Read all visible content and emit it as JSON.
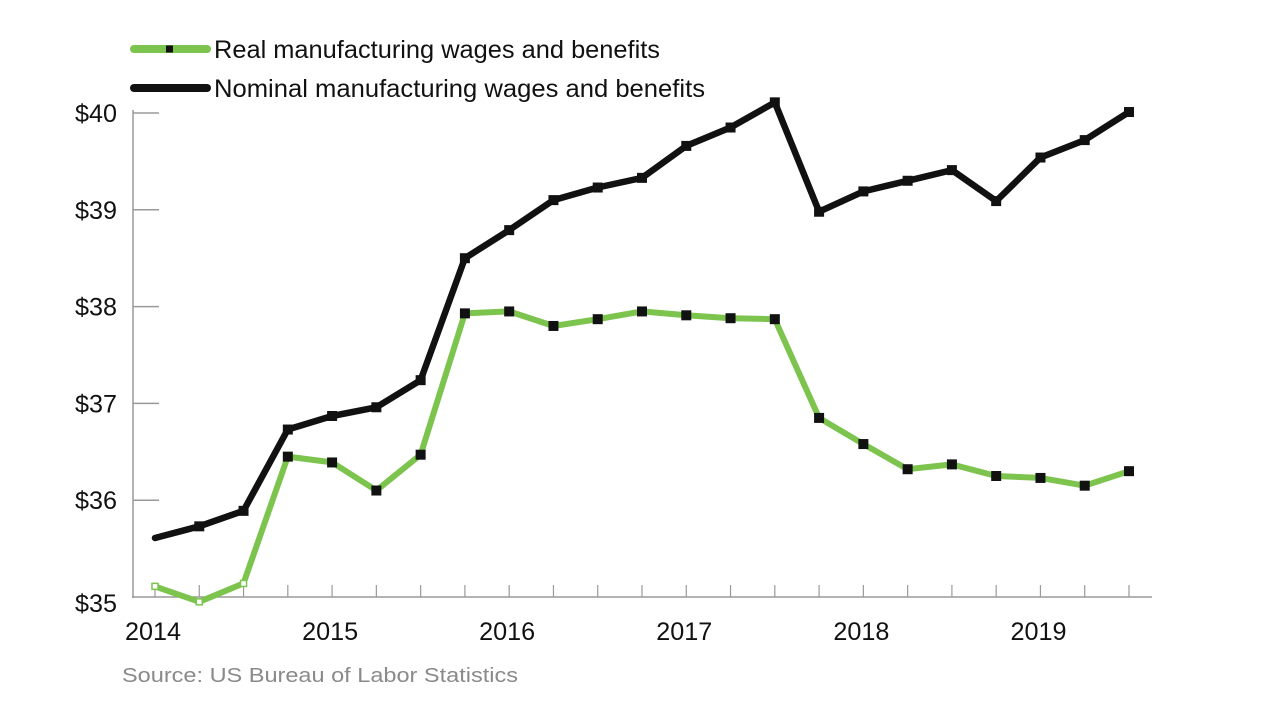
{
  "chart_data": {
    "type": "line",
    "title": "",
    "xlabel": "",
    "ylabel": "",
    "source": "Source: US Bureau of Labor Statistics",
    "x": [
      "2014 Q1",
      "2014 Q2",
      "2014 Q3",
      "2014 Q4",
      "2015 Q1",
      "2015 Q2",
      "2015 Q3",
      "2015 Q4",
      "2016 Q1",
      "2016 Q2",
      "2016 Q3",
      "2016 Q4",
      "2017 Q1",
      "2017 Q2",
      "2017 Q3",
      "2017 Q4",
      "2018 Q1",
      "2018 Q2",
      "2018 Q3",
      "2018 Q4",
      "2019 Q1",
      "2019 Q2",
      "2019 Q3"
    ],
    "x_tick_labels": [
      {
        "label": "2014",
        "index": 0
      },
      {
        "label": "2015",
        "index": 4
      },
      {
        "label": "2016",
        "index": 8
      },
      {
        "label": "2017",
        "index": 12
      },
      {
        "label": "2018",
        "index": 16
      },
      {
        "label": "2019",
        "index": 20
      }
    ],
    "y_tick_labels": [
      "$35",
      "$36",
      "$37",
      "$38",
      "$39",
      "$40"
    ],
    "y_ticks": [
      35,
      36,
      37,
      38,
      39,
      40
    ],
    "ylim": [
      35,
      40
    ],
    "grid": false,
    "legend_position": "top-left",
    "series": [
      {
        "name": "Real manufacturing wages and benefits",
        "color": "#7cc44e",
        "marker_color": "#111111",
        "values": [
          35.11,
          34.95,
          35.14,
          36.45,
          36.39,
          36.1,
          36.47,
          37.93,
          37.95,
          37.8,
          37.87,
          37.95,
          37.91,
          37.88,
          37.87,
          36.85,
          36.58,
          36.32,
          36.37,
          36.25,
          36.23,
          36.15,
          36.3
        ]
      },
      {
        "name": "Nominal manufacturing wages and benefits",
        "color": "#111111",
        "marker_color": "#111111",
        "values": [
          35.61,
          35.73,
          35.89,
          36.73,
          36.87,
          36.96,
          37.24,
          38.5,
          38.79,
          39.1,
          39.23,
          39.33,
          39.66,
          39.85,
          40.11,
          38.98,
          39.19,
          39.3,
          39.41,
          39.09,
          39.54,
          39.72,
          40.01
        ]
      }
    ]
  }
}
